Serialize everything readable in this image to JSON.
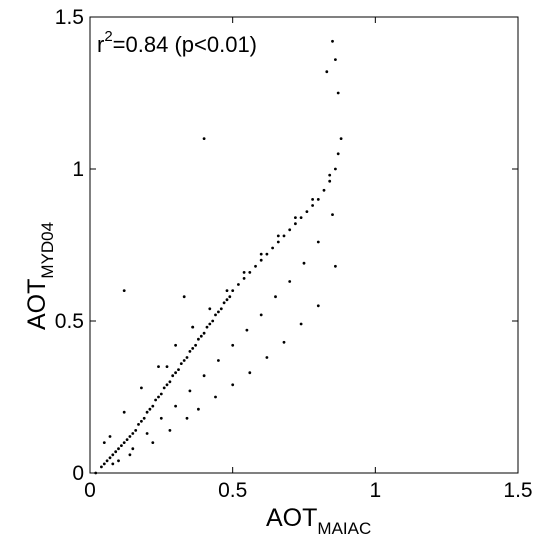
{
  "chart_data": {
    "type": "scatter",
    "title": "",
    "xlabel": {
      "main": "AOT",
      "subscript": "MAIAC"
    },
    "ylabel": {
      "main": "AOT",
      "subscript": "MYD04"
    },
    "xlim": [
      0,
      1.5
    ],
    "ylim": [
      0,
      1.5
    ],
    "xticks": [
      0,
      0.5,
      1,
      1.5
    ],
    "yticks": [
      0,
      0.5,
      1,
      1.5
    ],
    "xtick_labels": [
      "0",
      "0.5",
      "1",
      "1.5"
    ],
    "ytick_labels": [
      "0",
      "0.5",
      "1",
      "1.5"
    ],
    "grid": false,
    "box": true,
    "annotation": {
      "base": "r",
      "superscript": "2",
      "rest": "=0.84 (p<0.01)"
    },
    "marker_color": "#000000",
    "series": [
      {
        "x": [
          0.02,
          0.04,
          0.05,
          0.06,
          0.07,
          0.08,
          0.09,
          0.1,
          0.11,
          0.12,
          0.13,
          0.14,
          0.15,
          0.16,
          0.17,
          0.18,
          0.19,
          0.2,
          0.21,
          0.22,
          0.23,
          0.24,
          0.25,
          0.26,
          0.27,
          0.28,
          0.29,
          0.3,
          0.31,
          0.32,
          0.33,
          0.34,
          0.35,
          0.36,
          0.37,
          0.38,
          0.39,
          0.4,
          0.41,
          0.42,
          0.43,
          0.44,
          0.45,
          0.46,
          0.47,
          0.48,
          0.49,
          0.5,
          0.52,
          0.54,
          0.56,
          0.58,
          0.6,
          0.62,
          0.64,
          0.66,
          0.68,
          0.7,
          0.72,
          0.74,
          0.76,
          0.78,
          0.8,
          0.82,
          0.84,
          0.86,
          0.87,
          0.88,
          0.1,
          0.15,
          0.2,
          0.25,
          0.3,
          0.35,
          0.4,
          0.45,
          0.5,
          0.55,
          0.6,
          0.65,
          0.7,
          0.75,
          0.8,
          0.85,
          0.05,
          0.12,
          0.18,
          0.24,
          0.3,
          0.36,
          0.42,
          0.48,
          0.54,
          0.6,
          0.66,
          0.72,
          0.78,
          0.84,
          0.08,
          0.14,
          0.22,
          0.28,
          0.34,
          0.38,
          0.44,
          0.5,
          0.56,
          0.62,
          0.68,
          0.74,
          0.8,
          0.86,
          0.07,
          0.27,
          0.36,
          0.4,
          0.85,
          0.86,
          0.83,
          0.87,
          0.33,
          0.12
        ],
        "y": [
          0.0,
          0.02,
          0.03,
          0.04,
          0.05,
          0.06,
          0.07,
          0.08,
          0.09,
          0.1,
          0.11,
          0.12,
          0.13,
          0.14,
          0.16,
          0.17,
          0.18,
          0.2,
          0.21,
          0.22,
          0.24,
          0.25,
          0.26,
          0.28,
          0.29,
          0.3,
          0.32,
          0.33,
          0.34,
          0.36,
          0.37,
          0.38,
          0.4,
          0.41,
          0.42,
          0.44,
          0.45,
          0.46,
          0.48,
          0.49,
          0.5,
          0.52,
          0.53,
          0.54,
          0.56,
          0.57,
          0.58,
          0.6,
          0.62,
          0.64,
          0.66,
          0.68,
          0.7,
          0.72,
          0.74,
          0.76,
          0.78,
          0.8,
          0.82,
          0.84,
          0.86,
          0.88,
          0.9,
          0.93,
          0.96,
          1.0,
          1.05,
          1.1,
          0.04,
          0.08,
          0.13,
          0.18,
          0.22,
          0.27,
          0.32,
          0.37,
          0.42,
          0.47,
          0.52,
          0.58,
          0.63,
          0.69,
          0.76,
          0.85,
          0.1,
          0.2,
          0.28,
          0.35,
          0.42,
          0.48,
          0.54,
          0.6,
          0.66,
          0.72,
          0.78,
          0.84,
          0.9,
          0.98,
          0.03,
          0.06,
          0.1,
          0.14,
          0.18,
          0.21,
          0.25,
          0.29,
          0.33,
          0.38,
          0.43,
          0.49,
          0.55,
          0.68,
          0.12,
          0.35,
          0.48,
          1.1,
          1.42,
          1.36,
          1.32,
          1.25,
          0.58,
          0.6
        ]
      }
    ]
  }
}
